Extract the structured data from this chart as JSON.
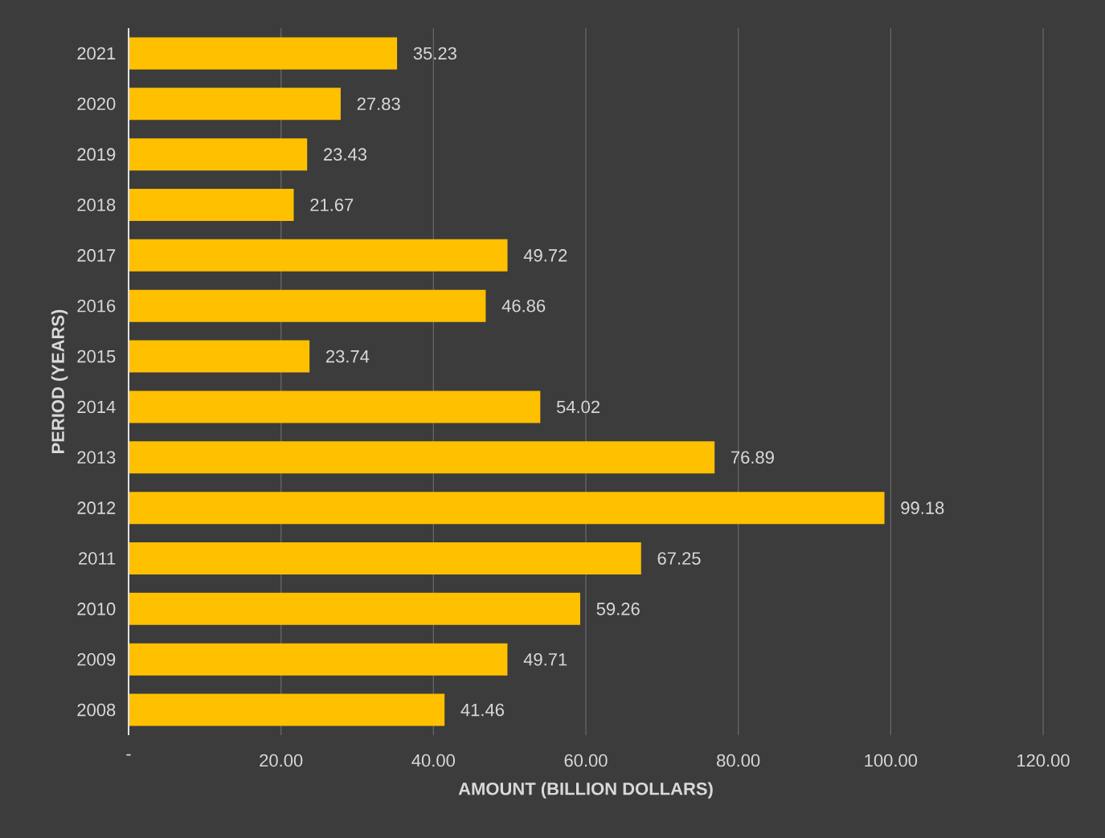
{
  "chart_data": {
    "type": "bar",
    "orientation": "horizontal",
    "xlabel": "AMOUNT (BILLION DOLLARS)",
    "ylabel": "PERIOD (YEARS)",
    "categories": [
      "2021",
      "2020",
      "2019",
      "2018",
      "2017",
      "2016",
      "2015",
      "2014",
      "2013",
      "2012",
      "2011",
      "2010",
      "2009",
      "2008"
    ],
    "values": [
      35.23,
      27.83,
      23.43,
      21.67,
      49.72,
      46.86,
      23.74,
      54.02,
      76.89,
      99.18,
      67.25,
      59.26,
      49.71,
      41.46
    ],
    "color": "#ffc000",
    "data_labels": true,
    "grid": "x",
    "xlim": [
      0,
      120
    ],
    "xticks": [
      {
        "value": 0,
        "label": "-"
      },
      {
        "value": 20,
        "label": "20.00"
      },
      {
        "value": 40,
        "label": "40.00"
      },
      {
        "value": 60,
        "label": "60.00"
      },
      {
        "value": 80,
        "label": "80.00"
      },
      {
        "value": 100,
        "label": "100.00"
      },
      {
        "value": 120,
        "label": "120.00"
      }
    ]
  }
}
